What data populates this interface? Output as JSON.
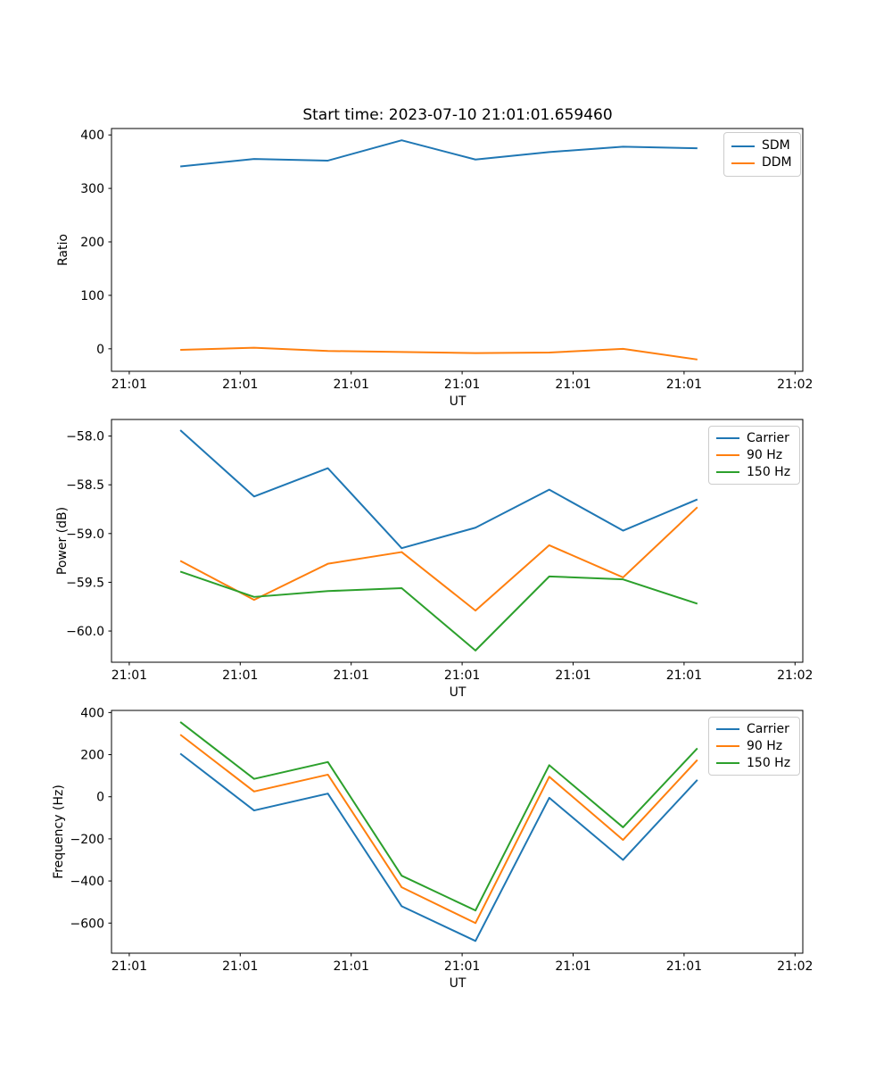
{
  "figure": {
    "title": "Start time: 2023-07-10 21:01:01.659460",
    "background_color": "#ffffff",
    "spine_color": "#000000",
    "tick_label_color": "#000000"
  },
  "chart_data": [
    {
      "type": "line",
      "title": "Start time: 2023-07-10 21:01:01.659460",
      "xlabel": "UT",
      "ylabel": "Ratio",
      "x_axis_unit": "seconds after 21:01:00 UT",
      "x": [
        4.6,
        11.25,
        17.9,
        24.55,
        31.2,
        37.85,
        44.5,
        51.2
      ],
      "series": [
        {
          "name": "SDM",
          "color": "#1f77b4",
          "values": [
            341,
            355,
            352,
            390,
            354,
            368,
            378,
            375
          ]
        },
        {
          "name": "DDM",
          "color": "#ff7f0e",
          "values": [
            -2,
            2,
            -4,
            -6,
            -8,
            -7,
            0,
            -20
          ]
        }
      ],
      "xlim": [
        -1.6,
        60.7
      ],
      "ylim": [
        -42,
        412
      ],
      "xticks": [
        0,
        10,
        20,
        30,
        40,
        50,
        60
      ],
      "xtick_labels": [
        "21:01",
        "21:01",
        "21:01",
        "21:01",
        "21:01",
        "21:01",
        "21:02"
      ],
      "yticks": [
        0,
        100,
        200,
        300,
        400
      ],
      "ytick_labels": [
        "0",
        "100",
        "200",
        "300",
        "400"
      ],
      "grid": false,
      "legend_position": "upper right"
    },
    {
      "type": "line",
      "title": "",
      "xlabel": "UT",
      "ylabel": "Power (dB)",
      "x_axis_unit": "seconds after 21:01:00 UT",
      "x": [
        4.6,
        11.25,
        17.9,
        24.55,
        31.2,
        37.85,
        44.5,
        51.2
      ],
      "series": [
        {
          "name": "Carrier",
          "color": "#1f77b4",
          "values": [
            -57.94,
            -58.62,
            -58.33,
            -59.15,
            -58.94,
            -58.55,
            -58.97,
            -58.65
          ]
        },
        {
          "name": "90 Hz",
          "color": "#ff7f0e",
          "values": [
            -59.28,
            -59.68,
            -59.31,
            -59.19,
            -59.79,
            -59.12,
            -59.45,
            -58.73
          ]
        },
        {
          "name": "150 Hz",
          "color": "#2ca02c",
          "values": [
            -59.39,
            -59.65,
            -59.59,
            -59.56,
            -60.2,
            -59.44,
            -59.47,
            -59.72
          ]
        }
      ],
      "xlim": [
        -1.6,
        60.7
      ],
      "ylim": [
        -60.32,
        -57.83
      ],
      "xticks": [
        0,
        10,
        20,
        30,
        40,
        50,
        60
      ],
      "xtick_labels": [
        "21:01",
        "21:01",
        "21:01",
        "21:01",
        "21:01",
        "21:01",
        "21:02"
      ],
      "yticks": [
        -58.0,
        -58.5,
        -59.0,
        -59.5,
        -60.0
      ],
      "ytick_labels": [
        "−58.0",
        "−58.5",
        "−59.0",
        "−59.5",
        "−60.0"
      ],
      "grid": false,
      "legend_position": "upper right"
    },
    {
      "type": "line",
      "title": "",
      "xlabel": "UT",
      "ylabel": "Frequency (Hz)",
      "x_axis_unit": "seconds after 21:01:00 UT",
      "x": [
        4.6,
        11.25,
        17.9,
        24.55,
        31.2,
        37.85,
        44.5,
        51.2
      ],
      "series": [
        {
          "name": "Carrier",
          "color": "#1f77b4",
          "values": [
            205,
            -65,
            15,
            -520,
            -685,
            -5,
            -300,
            80
          ]
        },
        {
          "name": "90 Hz",
          "color": "#ff7f0e",
          "values": [
            295,
            25,
            105,
            -430,
            -600,
            95,
            -205,
            175
          ]
        },
        {
          "name": "150 Hz",
          "color": "#2ca02c",
          "values": [
            355,
            85,
            165,
            -375,
            -540,
            150,
            -145,
            230
          ]
        }
      ],
      "xlim": [
        -1.6,
        60.7
      ],
      "ylim": [
        -743,
        410
      ],
      "xticks": [
        0,
        10,
        20,
        30,
        40,
        50,
        60
      ],
      "xtick_labels": [
        "21:01",
        "21:01",
        "21:01",
        "21:01",
        "21:01",
        "21:01",
        "21:02"
      ],
      "yticks": [
        400,
        200,
        0,
        -200,
        -400,
        -600
      ],
      "ytick_labels": [
        "400",
        "200",
        "0",
        "−200",
        "−400",
        "−600"
      ],
      "grid": false,
      "legend_position": "upper right"
    }
  ]
}
